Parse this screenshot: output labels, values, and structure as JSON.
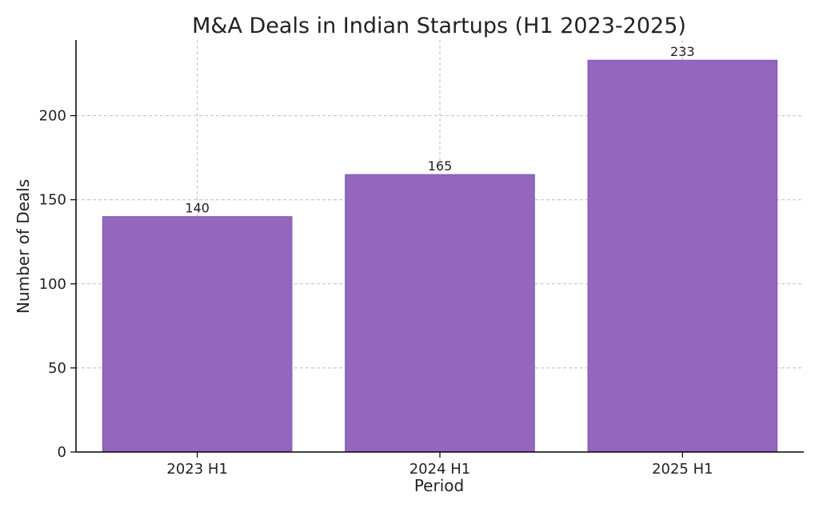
{
  "chart_data": {
    "type": "bar",
    "title": "M&A Deals in Indian Startups (H1 2023-2025)",
    "xlabel": "Period",
    "ylabel": "Number of Deals",
    "categories": [
      "2023 H1",
      "2024 H1",
      "2025 H1"
    ],
    "values": [
      140,
      165,
      233
    ],
    "data_labels": [
      "140",
      "165",
      "233"
    ],
    "y_ticks": [
      0,
      50,
      100,
      150,
      200
    ],
    "y_tick_labels": [
      "0",
      "50",
      "100",
      "150",
      "200"
    ],
    "ylim": [
      0,
      245
    ],
    "grid": true,
    "legend": false,
    "colors": {
      "bar": "#9467bd",
      "bar_edge": "#7f56b5",
      "grid": "#bfbfbf",
      "axis": "#000000",
      "text": "#222222"
    }
  }
}
